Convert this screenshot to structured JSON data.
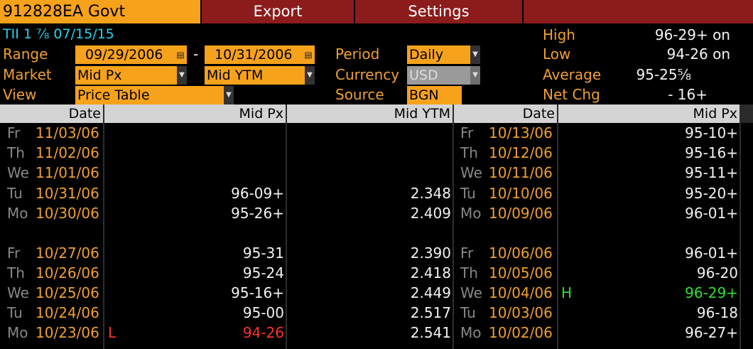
{
  "ticker": "912828EA Govt",
  "toolbar": {
    "export": "Export",
    "settings": "Settings"
  },
  "bond_desc": "TII 1 ⅞ 07/15/15",
  "labels": {
    "range": "Range",
    "market": "Market",
    "view": "View",
    "period": "Period",
    "currency": "Currency",
    "source": "Source"
  },
  "fields": {
    "range_start": "09/29/2006",
    "range_sep": "-",
    "range_end": "10/31/2006",
    "market1": "Mid Px",
    "market2": "Mid YTM",
    "view": "Price Table",
    "period": "Daily",
    "currency": "USD",
    "source": "BGN"
  },
  "stats": {
    "high_label": "High",
    "high_value": "96-29+ on",
    "low_label": "Low",
    "low_value": "94-26 on",
    "avg_label": "Average",
    "avg_value": "95-25⅝",
    "netchg_label": "Net Chg",
    "netchg_value": "- 16+"
  },
  "table": {
    "headers": {
      "date": "Date",
      "midpx": "Mid Px",
      "midytm": "Mid YTM",
      "date2": "Date",
      "midpx2": "Mid Px"
    },
    "left": [
      {
        "day": "Fr",
        "date": "11/03/06",
        "px": "",
        "ytm": ""
      },
      {
        "day": "Th",
        "date": "11/02/06",
        "px": "",
        "ytm": ""
      },
      {
        "day": "We",
        "date": "11/01/06",
        "px": "",
        "ytm": ""
      },
      {
        "day": "Tu",
        "date": "10/31/06",
        "px": "96-09+",
        "ytm": "2.348"
      },
      {
        "day": "Mo",
        "date": "10/30/06",
        "px": "95-26+",
        "ytm": "2.409"
      },
      {
        "day": "Fr",
        "date": "10/27/06",
        "px": "95-31",
        "ytm": "2.390"
      },
      {
        "day": "Th",
        "date": "10/26/06",
        "px": "95-24",
        "ytm": "2.418"
      },
      {
        "day": "We",
        "date": "10/25/06",
        "px": "95-16+",
        "ytm": "2.449"
      },
      {
        "day": "Tu",
        "date": "10/24/06",
        "px": "95-00",
        "ytm": "2.517"
      },
      {
        "day": "Mo",
        "date": "10/23/06",
        "px": "94-26",
        "ytm": "2.541",
        "marker": "L"
      }
    ],
    "right": [
      {
        "day": "Fr",
        "date": "10/13/06",
        "px": "95-10+"
      },
      {
        "day": "Th",
        "date": "10/12/06",
        "px": "95-16+"
      },
      {
        "day": "We",
        "date": "10/11/06",
        "px": "95-11+"
      },
      {
        "day": "Tu",
        "date": "10/10/06",
        "px": "95-20+"
      },
      {
        "day": "Mo",
        "date": "10/09/06",
        "px": "96-01+"
      },
      {
        "day": "Fr",
        "date": "10/06/06",
        "px": "96-01+"
      },
      {
        "day": "Th",
        "date": "10/05/06",
        "px": "96-20"
      },
      {
        "day": "We",
        "date": "10/04/06",
        "px": "96-29+",
        "marker": "H"
      },
      {
        "day": "Tu",
        "date": "10/03/06",
        "px": "96-18"
      },
      {
        "day": "Mo",
        "date": "10/02/06",
        "px": "96-27+"
      }
    ]
  }
}
